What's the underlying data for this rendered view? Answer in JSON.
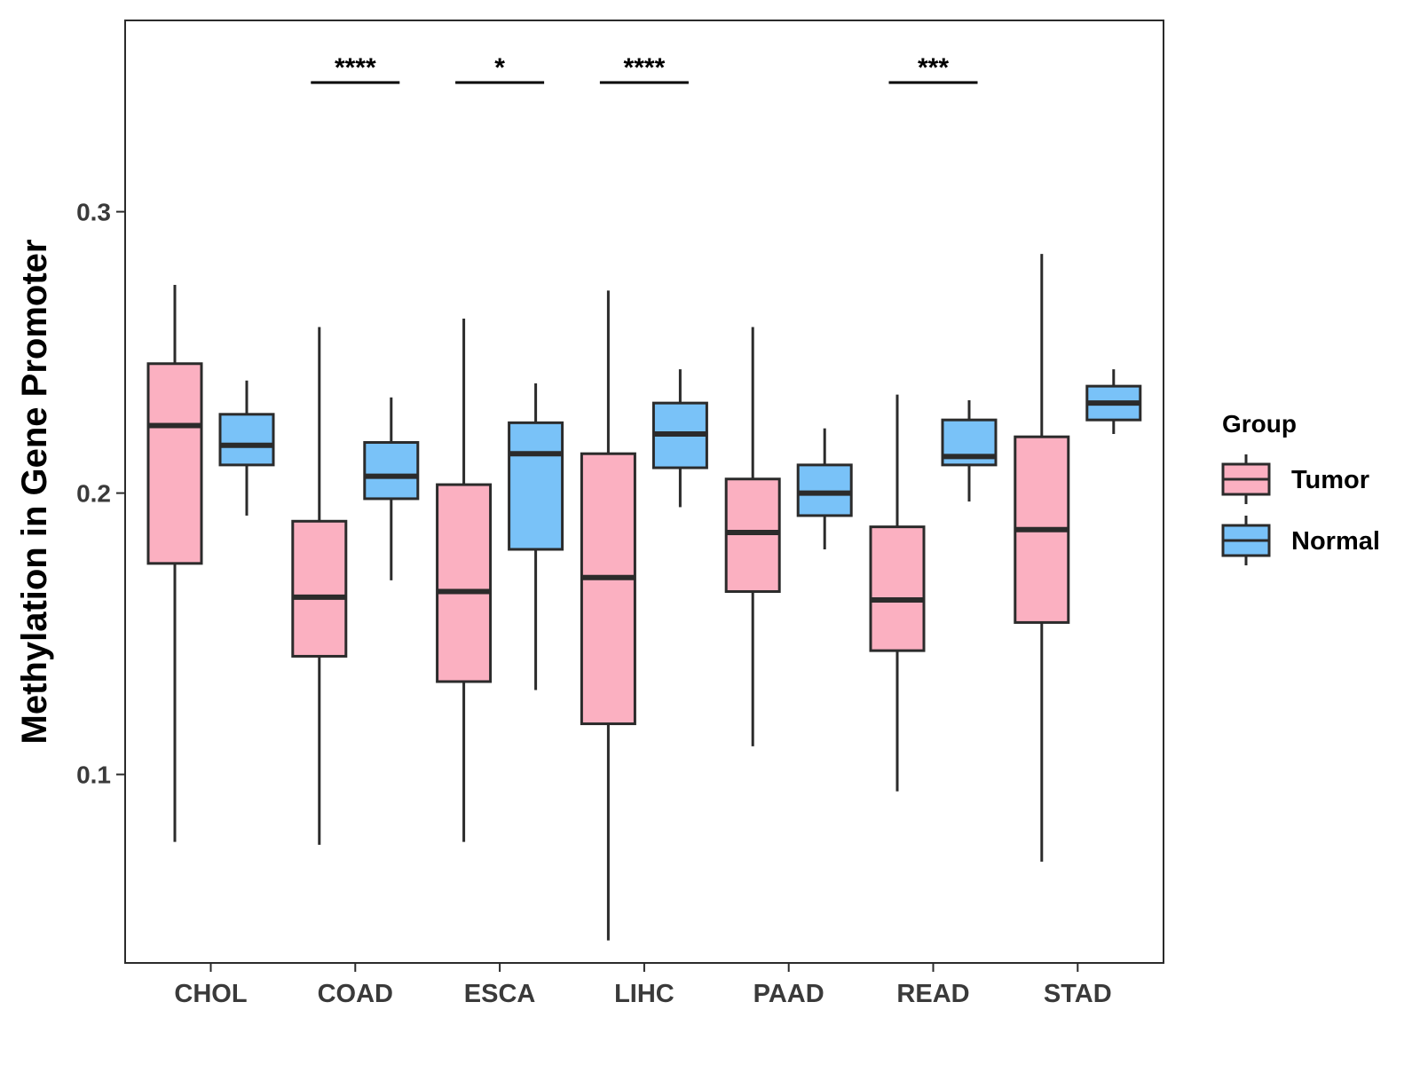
{
  "chart_data": {
    "type": "boxplot",
    "title": "",
    "xlabel": "",
    "ylabel": "Methylation in Gene Promoter",
    "ylim": [
      0.033,
      0.368
    ],
    "yticks": [
      0.1,
      0.2,
      0.3
    ],
    "ytick_labels": [
      "0.1",
      "0.2",
      "0.3"
    ],
    "categories": [
      "CHOL",
      "COAD",
      "ESCA",
      "LIHC",
      "PAAD",
      "READ",
      "STAD"
    ],
    "legend": {
      "title": "Group",
      "position": "right",
      "entries": [
        "Tumor",
        "Normal"
      ]
    },
    "colors": {
      "Tumor": "#fbb0c1",
      "Normal": "#79c2f8",
      "outline": "#2b2b2b"
    },
    "series": [
      {
        "name": "Tumor",
        "boxes": [
          {
            "category": "CHOL",
            "min": 0.076,
            "q1": 0.175,
            "median": 0.224,
            "q3": 0.246,
            "max": 0.274
          },
          {
            "category": "COAD",
            "min": 0.075,
            "q1": 0.142,
            "median": 0.163,
            "q3": 0.19,
            "max": 0.259
          },
          {
            "category": "ESCA",
            "min": 0.076,
            "q1": 0.133,
            "median": 0.165,
            "q3": 0.203,
            "max": 0.262
          },
          {
            "category": "LIHC",
            "min": 0.041,
            "q1": 0.118,
            "median": 0.17,
            "q3": 0.214,
            "max": 0.272
          },
          {
            "category": "PAAD",
            "min": 0.11,
            "q1": 0.165,
            "median": 0.186,
            "q3": 0.205,
            "max": 0.259
          },
          {
            "category": "READ",
            "min": 0.094,
            "q1": 0.144,
            "median": 0.162,
            "q3": 0.188,
            "max": 0.235
          },
          {
            "category": "STAD",
            "min": 0.069,
            "q1": 0.154,
            "median": 0.187,
            "q3": 0.22,
            "max": 0.285
          }
        ]
      },
      {
        "name": "Normal",
        "boxes": [
          {
            "category": "CHOL",
            "min": 0.192,
            "q1": 0.21,
            "median": 0.217,
            "q3": 0.228,
            "max": 0.24
          },
          {
            "category": "COAD",
            "min": 0.169,
            "q1": 0.198,
            "median": 0.206,
            "q3": 0.218,
            "max": 0.234
          },
          {
            "category": "ESCA",
            "min": 0.13,
            "q1": 0.18,
            "median": 0.214,
            "q3": 0.225,
            "max": 0.239
          },
          {
            "category": "LIHC",
            "min": 0.195,
            "q1": 0.209,
            "median": 0.221,
            "q3": 0.232,
            "max": 0.244
          },
          {
            "category": "PAAD",
            "min": 0.18,
            "q1": 0.192,
            "median": 0.2,
            "q3": 0.21,
            "max": 0.223
          },
          {
            "category": "READ",
            "min": 0.197,
            "q1": 0.21,
            "median": 0.213,
            "q3": 0.226,
            "max": 0.233
          },
          {
            "category": "STAD",
            "min": 0.221,
            "q1": 0.226,
            "median": 0.232,
            "q3": 0.238,
            "max": 0.244
          }
        ]
      }
    ],
    "significance": [
      {
        "category": "COAD",
        "label": "****"
      },
      {
        "category": "ESCA",
        "label": "*"
      },
      {
        "category": "LIHC",
        "label": "****"
      },
      {
        "category": "READ",
        "label": "***"
      }
    ]
  }
}
